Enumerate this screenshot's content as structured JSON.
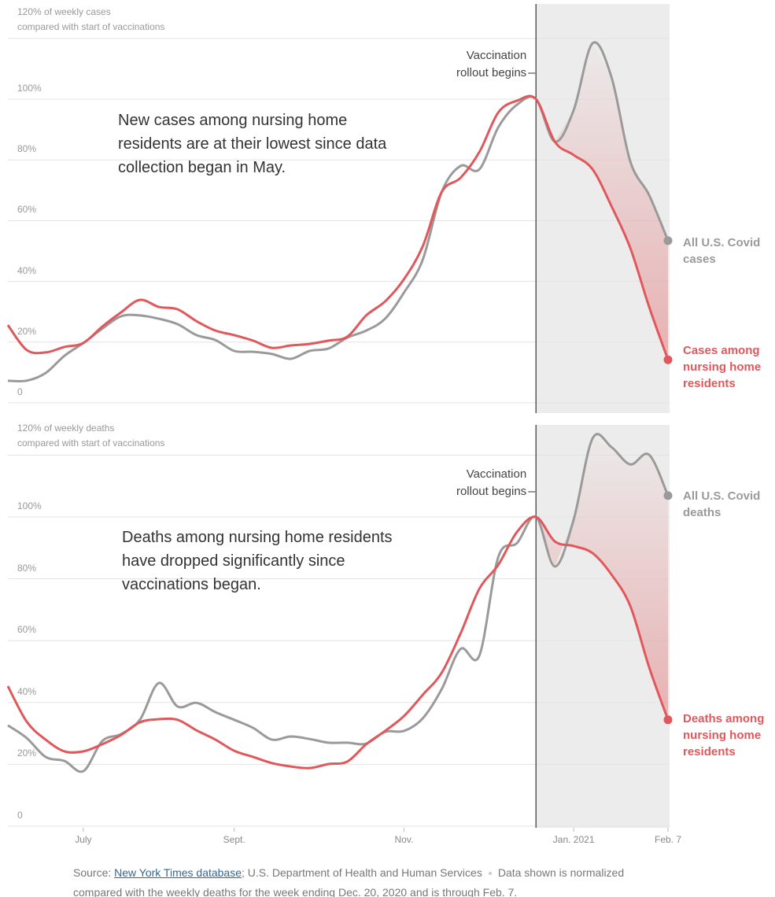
{
  "chart_data": [
    {
      "type": "line",
      "y_label": "compared with start of vaccinations",
      "annotation": "New cases among nursing home residents are at their lowest since data collection began in May.",
      "event_label": "Vaccination rollout begins",
      "categories": [
        null,
        null,
        null,
        null,
        null,
        null,
        null,
        null,
        null,
        null,
        null,
        null,
        null,
        null,
        null,
        null,
        null,
        null,
        null,
        null,
        null,
        null,
        null,
        null,
        null,
        null,
        null,
        null,
        null,
        null,
        null,
        null,
        null,
        null,
        null,
        null
      ],
      "series": [
        {
          "name": "All U.S. Covid cases",
          "color": "#9a9a9a",
          "values": [
            7.3,
            7.3,
            9.8,
            15.5,
            19.7,
            24.4,
            28.5,
            28.8,
            27.7,
            25.9,
            22.3,
            20.7,
            17.1,
            16.8,
            16.1,
            14.5,
            17.1,
            17.9,
            21.5,
            23.8,
            27.7,
            36.3,
            47.2,
            69.4,
            78,
            76.9,
            90.7,
            98.2,
            100,
            86,
            96.4,
            118.4,
            107.3,
            79.5,
            68.4,
            53.4
          ]
        },
        {
          "name": "Cases among nursing home residents",
          "color": "#e0585b",
          "values": [
            25.6,
            17.4,
            16.6,
            18.4,
            19.7,
            25.1,
            29.8,
            33.9,
            31.6,
            30.8,
            26.9,
            23.8,
            22.3,
            20.5,
            18.1,
            18.9,
            19.4,
            20.5,
            21.8,
            28.8,
            33.4,
            40.7,
            51.6,
            69.4,
            74.1,
            82.6,
            95.6,
            99.5,
            100,
            86,
            81.6,
            76.9,
            64.8,
            51,
            31.6,
            14.2
          ]
        }
      ],
      "ylim": [
        0,
        120
      ],
      "yticks": [
        0,
        {
          "value": 20,
          "label": "20%"
        },
        {
          "value": 40,
          "label": "40%"
        },
        {
          "value": 60,
          "label": "60%"
        },
        {
          "value": 80,
          "label": "80%"
        },
        {
          "value": 100,
          "label": "100%"
        },
        {
          "value": 120,
          "label": "120% of weekly cases"
        }
      ],
      "grid": true
    },
    {
      "type": "line",
      "y_label": "compared with start of vaccinations",
      "annotation": "Deaths among nursing home residents have dropped significantly since vaccinations began.",
      "event_label": "Vaccination rollout begins",
      "categories": [
        null,
        null,
        null,
        null,
        "July",
        null,
        null,
        null,
        null,
        null,
        null,
        null,
        "Sept.",
        null,
        null,
        null,
        null,
        null,
        null,
        null,
        null,
        "Nov.",
        null,
        null,
        null,
        null,
        null,
        null,
        null,
        null,
        "Jan. 2021",
        null,
        null,
        null,
        null,
        "Feb. 7"
      ],
      "series": [
        {
          "name": "All U.S. Covid deaths",
          "color": "#9a9a9a",
          "values": [
            32.6,
            28.5,
            22.4,
            21.1,
            17.8,
            27.5,
            29.8,
            34.4,
            46.3,
            38.7,
            39.9,
            36.9,
            34.4,
            31.8,
            28,
            29,
            28.2,
            27,
            27,
            26.7,
            30.5,
            30.8,
            34.9,
            44.3,
            57.3,
            55.2,
            87,
            91.6,
            100,
            84,
            99.2,
            125.4,
            122.6,
            117,
            120.1,
            106.9
          ]
        },
        {
          "name": "Deaths among nursing home residents",
          "color": "#e0585b",
          "values": [
            45.3,
            33.8,
            28,
            24.2,
            24.2,
            26.5,
            29.5,
            33.6,
            34.6,
            34.4,
            31,
            28,
            24.4,
            22.4,
            20.4,
            19.3,
            18.8,
            20.1,
            20.9,
            26.5,
            30.8,
            35.6,
            42.5,
            49.6,
            62.3,
            76.8,
            84.5,
            95.2,
            100,
            92.1,
            90.6,
            88.3,
            81.4,
            71.2,
            51.4,
            34.4
          ]
        }
      ],
      "ylim": [
        0,
        120
      ],
      "yticks": [
        0,
        {
          "value": 20,
          "label": "20%"
        },
        {
          "value": 40,
          "label": "40%"
        },
        {
          "value": 60,
          "label": "60%"
        },
        {
          "value": 80,
          "label": "80%"
        },
        {
          "value": 100,
          "label": "100%"
        },
        {
          "value": 120,
          "label": "120% of weekly deaths"
        }
      ],
      "grid": true
    }
  ],
  "footer": {
    "source_prefix": "Source:",
    "source_link": "New York Times database",
    "source_rest": "; U.S. Department of Health and Human Services",
    "note": "Data shown is normalized compared with the weekly deaths for the week ending Dec. 20, 2020 and is through Feb. 7."
  }
}
